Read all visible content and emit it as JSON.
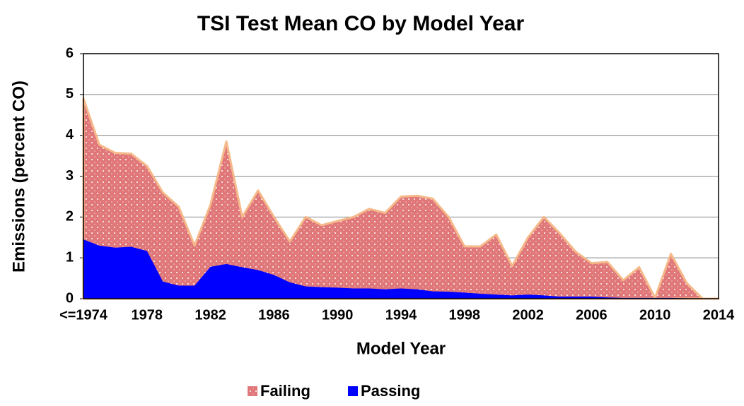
{
  "chart_data": {
    "type": "area",
    "title": "TSI Test Mean CO by Model Year",
    "x_label": "Model Year",
    "y_label": "Emissions (percent CO)",
    "categories": [
      "<=1974",
      null,
      null,
      null,
      "1978",
      null,
      null,
      null,
      "1982",
      null,
      null,
      null,
      "1986",
      null,
      null,
      null,
      "1990",
      null,
      null,
      null,
      "1994",
      null,
      null,
      null,
      "1998",
      null,
      null,
      null,
      "2002",
      null,
      null,
      null,
      "2006",
      null,
      null,
      null,
      "2010",
      null,
      null,
      null,
      "2014"
    ],
    "series": [
      {
        "name": "Failing",
        "color": "#e0787a",
        "edge": "#f5b98a",
        "values": [
          4.9,
          3.77,
          3.57,
          3.55,
          3.25,
          2.6,
          2.25,
          1.3,
          2.3,
          3.85,
          2.0,
          2.65,
          2.0,
          1.4,
          2.0,
          1.8,
          1.9,
          2.0,
          2.2,
          2.1,
          2.5,
          2.52,
          2.45,
          2.0,
          1.28,
          1.28,
          1.57,
          0.8,
          1.5,
          2.0,
          1.6,
          1.15,
          0.87,
          0.9,
          0.45,
          0.77,
          0.02,
          1.1,
          0.38,
          0,
          0
        ]
      },
      {
        "name": "Passing",
        "color": "#0000ff",
        "values": [
          1.45,
          1.3,
          1.25,
          1.27,
          1.17,
          0.42,
          0.32,
          0.32,
          0.78,
          0.85,
          0.77,
          0.7,
          0.58,
          0.4,
          0.3,
          0.28,
          0.27,
          0.25,
          0.25,
          0.23,
          0.25,
          0.23,
          0.18,
          0.17,
          0.15,
          0.12,
          0.1,
          0.08,
          0.1,
          0.08,
          0.05,
          0.05,
          0.05,
          0.03,
          0.02,
          0.02,
          0.02,
          0.02,
          0.01,
          0,
          0
        ]
      }
    ],
    "ylim": [
      0,
      6
    ],
    "yticks": [
      0,
      1,
      2,
      3,
      4,
      5,
      6
    ],
    "grid": true,
    "legend": "bottom"
  }
}
